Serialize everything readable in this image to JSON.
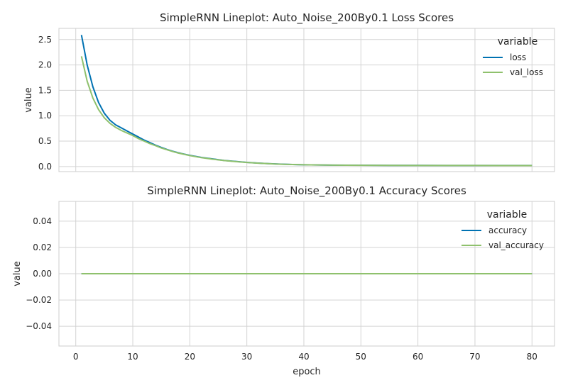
{
  "chart_data": [
    {
      "type": "line",
      "title": "SimpleRNN Lineplot: Auto_Noise_200By0.1 Loss Scores",
      "xlabel": "",
      "ylabel": "value",
      "xlim": [
        -2.95,
        83.95
      ],
      "ylim": [
        -0.1,
        2.72
      ],
      "xticks": [
        0,
        10,
        20,
        30,
        40,
        50,
        60,
        70,
        80
      ],
      "xtick_labels_visible": false,
      "yticks": [
        0.0,
        0.5,
        1.0,
        1.5,
        2.0,
        2.5
      ],
      "ytick_labels": [
        "0.0",
        "0.5",
        "1.0",
        "1.5",
        "2.0",
        "2.5"
      ],
      "grid": true,
      "legend": {
        "title": "variable",
        "placement": "top-right"
      },
      "series": [
        {
          "name": "loss",
          "color": "#0072b2",
          "x": [
            1,
            2,
            3,
            4,
            5,
            6,
            7,
            8,
            9,
            10,
            11,
            12,
            13,
            14,
            15,
            16,
            17,
            18,
            19,
            20,
            22,
            24,
            26,
            28,
            30,
            32,
            34,
            36,
            38,
            40,
            45,
            50,
            55,
            60,
            65,
            70,
            75,
            80
          ],
          "y": [
            2.59,
            2.0,
            1.57,
            1.26,
            1.05,
            0.91,
            0.82,
            0.76,
            0.7,
            0.64,
            0.58,
            0.52,
            0.47,
            0.42,
            0.375,
            0.335,
            0.3,
            0.27,
            0.245,
            0.22,
            0.18,
            0.15,
            0.12,
            0.1,
            0.082,
            0.068,
            0.056,
            0.046,
            0.04,
            0.035,
            0.028,
            0.025,
            0.023,
            0.022,
            0.021,
            0.021,
            0.02,
            0.02
          ]
        },
        {
          "name": "val_loss",
          "color": "#8fc16d",
          "x": [
            1,
            2,
            3,
            4,
            5,
            6,
            7,
            8,
            9,
            10,
            11,
            12,
            13,
            14,
            15,
            16,
            17,
            18,
            19,
            20,
            22,
            24,
            26,
            28,
            30,
            32,
            34,
            36,
            38,
            40,
            45,
            50,
            55,
            60,
            65,
            70,
            75,
            80
          ],
          "y": [
            2.17,
            1.68,
            1.35,
            1.12,
            0.96,
            0.85,
            0.77,
            0.71,
            0.66,
            0.61,
            0.55,
            0.5,
            0.45,
            0.41,
            0.365,
            0.33,
            0.295,
            0.265,
            0.24,
            0.215,
            0.175,
            0.145,
            0.118,
            0.098,
            0.08,
            0.066,
            0.055,
            0.045,
            0.039,
            0.034,
            0.027,
            0.024,
            0.022,
            0.021,
            0.02,
            0.02,
            0.019,
            0.019
          ]
        }
      ]
    },
    {
      "type": "line",
      "title": "SimpleRNN Lineplot: Auto_Noise_200By0.1 Accuracy Scores",
      "xlabel": "epoch",
      "ylabel": "value",
      "xlim": [
        -2.95,
        83.95
      ],
      "ylim": [
        -0.055,
        0.055
      ],
      "xticks": [
        0,
        10,
        20,
        30,
        40,
        50,
        60,
        70,
        80
      ],
      "xtick_labels": [
        "0",
        "10",
        "20",
        "30",
        "40",
        "50",
        "60",
        "70",
        "80"
      ],
      "yticks": [
        -0.04,
        -0.02,
        0.0,
        0.02,
        0.04
      ],
      "ytick_labels": [
        "−0.04",
        "−0.02",
        "0.00",
        "0.02",
        "0.04"
      ],
      "grid": true,
      "legend": {
        "title": "variable",
        "placement": "top-right"
      },
      "series": [
        {
          "name": "accuracy",
          "color": "#0072b2",
          "x": [
            1,
            80
          ],
          "y": [
            0.0,
            0.0
          ]
        },
        {
          "name": "val_accuracy",
          "color": "#8fc16d",
          "x": [
            1,
            80
          ],
          "y": [
            0.0,
            0.0
          ]
        }
      ]
    }
  ]
}
